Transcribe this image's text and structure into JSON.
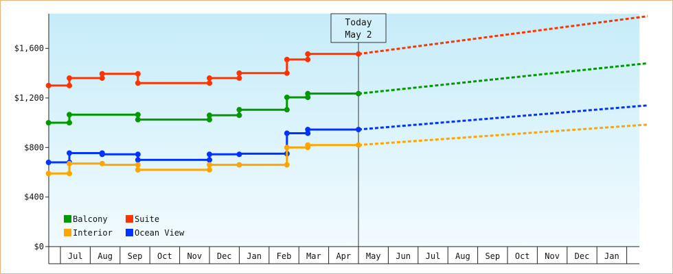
{
  "chart_data": {
    "type": "line",
    "title": "",
    "xlabel": "",
    "ylabel": "",
    "ylim": [
      0,
      1880
    ],
    "y_ticks": [
      0,
      400,
      800,
      1200,
      1600
    ],
    "y_tick_labels": [
      "$0",
      "$400",
      "$800",
      "$1,200",
      "$1,600"
    ],
    "x_months": [
      "Jul",
      "Aug",
      "Sep",
      "Oct",
      "Nov",
      "Dec",
      "Jan",
      "Feb",
      "Mar",
      "Apr",
      "May",
      "Jun",
      "Jul",
      "Aug",
      "Sep",
      "Oct",
      "Nov",
      "Dec",
      "Jan"
    ],
    "x_range_months": [
      -0.4,
      19.7
    ],
    "today": {
      "label_line1": "Today",
      "label_line2": "May 2",
      "x": 10
    },
    "grid": false,
    "legend_position": "bottom-left",
    "series": [
      {
        "name": "Suite",
        "color": "#ff3300",
        "points": [
          [
            -0.4,
            1300
          ],
          [
            0.3,
            1300
          ],
          [
            0.3,
            1360
          ],
          [
            1.4,
            1360
          ],
          [
            1.4,
            1395
          ],
          [
            2.6,
            1395
          ],
          [
            2.6,
            1320
          ],
          [
            5.0,
            1320
          ],
          [
            5.0,
            1360
          ],
          [
            6.0,
            1360
          ],
          [
            6.0,
            1400
          ],
          [
            7.6,
            1400
          ],
          [
            7.6,
            1510
          ],
          [
            8.3,
            1510
          ],
          [
            8.3,
            1555
          ],
          [
            10.0,
            1555
          ]
        ],
        "markers": [
          [
            -0.4,
            1300
          ],
          [
            0.3,
            1300
          ],
          [
            0.3,
            1360
          ],
          [
            1.4,
            1360
          ],
          [
            1.4,
            1395
          ],
          [
            2.6,
            1395
          ],
          [
            2.6,
            1320
          ],
          [
            5.0,
            1320
          ],
          [
            5.0,
            1360
          ],
          [
            6.0,
            1360
          ],
          [
            6.0,
            1400
          ],
          [
            7.6,
            1400
          ],
          [
            7.6,
            1510
          ],
          [
            8.3,
            1510
          ],
          [
            8.3,
            1555
          ],
          [
            10.0,
            1555
          ]
        ],
        "forecast": [
          [
            10.0,
            1555
          ],
          [
            19.7,
            1860
          ]
        ]
      },
      {
        "name": "Balcony",
        "color": "#009900",
        "points": [
          [
            -0.4,
            1000
          ],
          [
            0.3,
            1000
          ],
          [
            0.3,
            1065
          ],
          [
            2.6,
            1065
          ],
          [
            2.6,
            1025
          ],
          [
            5.0,
            1025
          ],
          [
            5.0,
            1060
          ],
          [
            6.0,
            1060
          ],
          [
            6.0,
            1105
          ],
          [
            7.6,
            1105
          ],
          [
            7.6,
            1205
          ],
          [
            8.3,
            1205
          ],
          [
            8.3,
            1235
          ],
          [
            10.0,
            1235
          ]
        ],
        "markers": [
          [
            -0.4,
            1000
          ],
          [
            0.3,
            1000
          ],
          [
            0.3,
            1065
          ],
          [
            2.6,
            1065
          ],
          [
            2.6,
            1025
          ],
          [
            5.0,
            1025
          ],
          [
            5.0,
            1060
          ],
          [
            6.0,
            1060
          ],
          [
            6.0,
            1105
          ],
          [
            7.6,
            1105
          ],
          [
            7.6,
            1205
          ],
          [
            8.3,
            1205
          ],
          [
            8.3,
            1235
          ],
          [
            10.0,
            1235
          ]
        ],
        "forecast": [
          [
            10.0,
            1235
          ],
          [
            19.7,
            1480
          ]
        ]
      },
      {
        "name": "Ocean View",
        "color": "#0033ff",
        "points": [
          [
            -0.4,
            680
          ],
          [
            0.3,
            680
          ],
          [
            0.3,
            755
          ],
          [
            1.4,
            755
          ],
          [
            1.4,
            745
          ],
          [
            2.6,
            745
          ],
          [
            2.6,
            700
          ],
          [
            5.0,
            700
          ],
          [
            5.0,
            745
          ],
          [
            6.0,
            745
          ],
          [
            6.0,
            750
          ],
          [
            7.6,
            750
          ],
          [
            7.6,
            915
          ],
          [
            8.3,
            915
          ],
          [
            8.3,
            945
          ],
          [
            10.0,
            945
          ]
        ],
        "markers": [
          [
            -0.4,
            680
          ],
          [
            0.3,
            680
          ],
          [
            0.3,
            755
          ],
          [
            1.4,
            755
          ],
          [
            1.4,
            745
          ],
          [
            2.6,
            745
          ],
          [
            2.6,
            700
          ],
          [
            5.0,
            700
          ],
          [
            5.0,
            745
          ],
          [
            6.0,
            745
          ],
          [
            7.6,
            750
          ],
          [
            7.6,
            915
          ],
          [
            8.3,
            915
          ],
          [
            8.3,
            945
          ],
          [
            10.0,
            945
          ]
        ],
        "forecast": [
          [
            10.0,
            945
          ],
          [
            19.7,
            1140
          ]
        ]
      },
      {
        "name": "Interior",
        "color": "#ffa500",
        "points": [
          [
            -0.4,
            590
          ],
          [
            0.3,
            590
          ],
          [
            0.3,
            670
          ],
          [
            1.4,
            670
          ],
          [
            1.4,
            660
          ],
          [
            2.6,
            660
          ],
          [
            2.6,
            620
          ],
          [
            5.0,
            620
          ],
          [
            5.0,
            660
          ],
          [
            6.0,
            660
          ],
          [
            7.6,
            660
          ],
          [
            7.6,
            800
          ],
          [
            8.3,
            800
          ],
          [
            8.3,
            820
          ],
          [
            10.0,
            820
          ]
        ],
        "markers": [
          [
            -0.4,
            590
          ],
          [
            0.3,
            590
          ],
          [
            0.3,
            670
          ],
          [
            1.4,
            670
          ],
          [
            2.6,
            660
          ],
          [
            2.6,
            620
          ],
          [
            5.0,
            620
          ],
          [
            5.0,
            660
          ],
          [
            6.0,
            660
          ],
          [
            7.6,
            660
          ],
          [
            7.6,
            800
          ],
          [
            8.3,
            800
          ],
          [
            8.3,
            820
          ],
          [
            10.0,
            820
          ]
        ],
        "forecast": [
          [
            10.0,
            820
          ],
          [
            19.7,
            985
          ]
        ]
      }
    ],
    "legend": [
      {
        "name": "Balcony",
        "color": "#009900"
      },
      {
        "name": "Suite",
        "color": "#ff3300"
      },
      {
        "name": "Interior",
        "color": "#ffa500"
      },
      {
        "name": "Ocean View",
        "color": "#0033ff"
      }
    ]
  }
}
